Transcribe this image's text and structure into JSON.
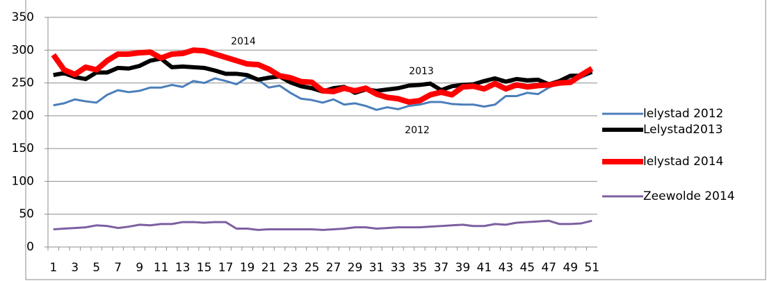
{
  "chart_data": {
    "type": "line",
    "categories": [
      1,
      null,
      3,
      null,
      5,
      null,
      7,
      null,
      9,
      null,
      11,
      null,
      13,
      null,
      15,
      null,
      17,
      null,
      19,
      null,
      21,
      null,
      23,
      null,
      25,
      null,
      27,
      null,
      29,
      null,
      31,
      null,
      33,
      null,
      35,
      null,
      37,
      null,
      39,
      null,
      41,
      null,
      43,
      null,
      45,
      null,
      47,
      null,
      49,
      null,
      51
    ],
    "ylim": [
      0,
      350
    ],
    "yticks": [
      0,
      50,
      100,
      150,
      200,
      250,
      300,
      350
    ],
    "grid": true,
    "legend": "right",
    "annotations": [
      "2014",
      "2013",
      "2012"
    ],
    "series": [
      {
        "name": "lelystad 2012",
        "color": "#4a7ebb",
        "values": [
          216,
          219,
          225,
          222,
          220,
          232,
          239,
          236,
          238,
          243,
          243,
          247,
          244,
          253,
          250,
          257,
          253,
          248,
          258,
          255,
          243,
          246,
          235,
          226,
          224,
          220,
          225,
          217,
          219,
          215,
          209,
          213,
          210,
          215,
          217,
          221,
          221,
          218,
          217,
          217,
          214,
          217,
          230,
          230,
          235,
          233,
          243,
          250,
          255,
          258,
          265
        ]
      },
      {
        "name": "Lelystad2013",
        "color": "#000000",
        "values": [
          262,
          265,
          259,
          256,
          266,
          266,
          273,
          272,
          276,
          284,
          287,
          274,
          275,
          274,
          273,
          269,
          264,
          264,
          262,
          255,
          258,
          260,
          251,
          245,
          242,
          237,
          242,
          244,
          235,
          240,
          238,
          240,
          242,
          246,
          247,
          249,
          239,
          245,
          247,
          248,
          253,
          257,
          252,
          256,
          254,
          255,
          248,
          253,
          261,
          261,
          267
        ]
      },
      {
        "name": "lelystad 2014",
        "color": "#ff0000",
        "values": [
          293,
          270,
          263,
          274,
          270,
          284,
          294,
          294,
          296,
          297,
          288,
          294,
          295,
          300,
          299,
          294,
          289,
          284,
          279,
          278,
          271,
          261,
          258,
          252,
          251,
          238,
          237,
          242,
          238,
          242,
          233,
          228,
          226,
          221,
          223,
          232,
          236,
          232,
          244,
          245,
          241,
          249,
          241,
          247,
          244,
          246,
          247,
          250,
          251,
          262,
          272
        ]
      },
      {
        "name": "Zeewolde 2014",
        "color": "#7d5fa0",
        "values": [
          27,
          28,
          29,
          30,
          33,
          32,
          29,
          31,
          34,
          33,
          35,
          35,
          38,
          38,
          37,
          38,
          38,
          28,
          28,
          26,
          27,
          27,
          27,
          27,
          27,
          26,
          27,
          28,
          30,
          30,
          28,
          29,
          30,
          30,
          30,
          31,
          32,
          33,
          34,
          32,
          32,
          35,
          34,
          37,
          38,
          39,
          40,
          35,
          35,
          36,
          40
        ]
      }
    ]
  }
}
